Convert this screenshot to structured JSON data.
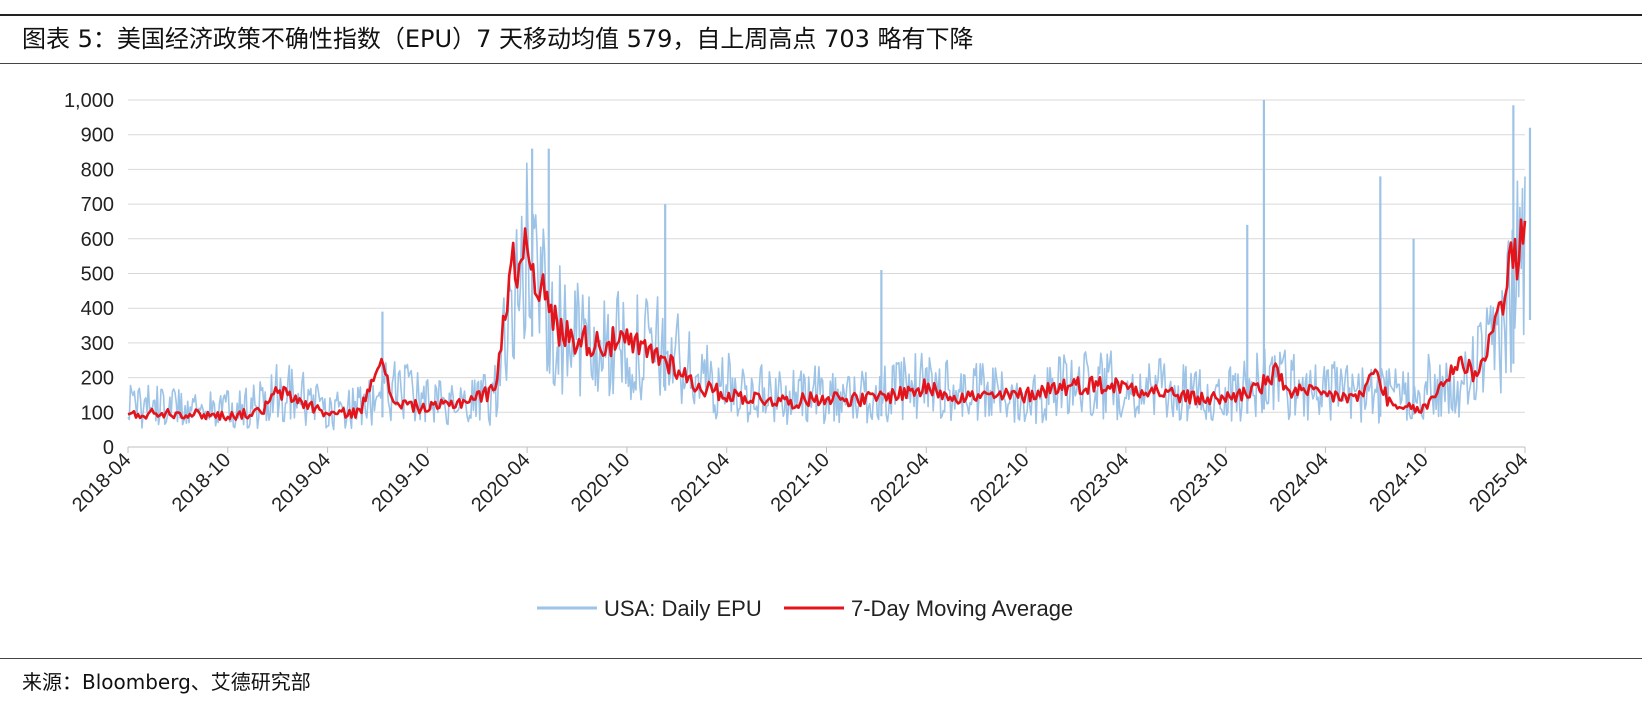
{
  "header": {
    "title": "图表 5：美国经济政策不确性指数（EPU）7 天移动均值 579，自上周高点 703 略有下降"
  },
  "footer": {
    "source": "来源：Bloomberg、艾德研究部"
  },
  "chart_data": {
    "type": "line",
    "title": "",
    "xlabel": "",
    "ylabel": "",
    "x_start": "2018-04",
    "x_end": "2025-04",
    "ylim": [
      0,
      1000
    ],
    "yticks": [
      "0",
      "100",
      "200",
      "300",
      "400",
      "500",
      "600",
      "700",
      "800",
      "900",
      "1,000"
    ],
    "xticks": [
      "2018-04",
      "2018-10",
      "2019-04",
      "2019-10",
      "2020-04",
      "2020-10",
      "2021-04",
      "2021-10",
      "2022-04",
      "2022-10",
      "2023-04",
      "2023-10",
      "2024-04",
      "2024-10",
      "2025-04"
    ],
    "grid": "horizontal",
    "legend_position": "bottom",
    "series": [
      {
        "name": "USA: Daily EPU",
        "color": "#9dc3e6",
        "style": "daily",
        "x": [
          "2018-04",
          "2018-06",
          "2018-08",
          "2018-10",
          "2018-12",
          "2019-01",
          "2019-02",
          "2019-04",
          "2019-06",
          "2019-08",
          "2019-10",
          "2019-12",
          "2020-02",
          "2020-03",
          "2020-04",
          "2020-05",
          "2020-06",
          "2020-08",
          "2020-10",
          "2020-12",
          "2021-01",
          "2021-02",
          "2021-04",
          "2021-06",
          "2021-08",
          "2021-10",
          "2021-12",
          "2022-02",
          "2022-04",
          "2022-06",
          "2022-08",
          "2022-10",
          "2022-12",
          "2023-02",
          "2023-04",
          "2023-06",
          "2023-08",
          "2023-10",
          "2023-12",
          "2024-01",
          "2024-02",
          "2024-04",
          "2024-06",
          "2024-08",
          "2024-10",
          "2024-12",
          "2025-01",
          "2025-02",
          "2025-03",
          "2025-04"
        ],
        "values": [
          120,
          115,
          110,
          105,
          120,
          170,
          150,
          100,
          115,
          170,
          125,
          110,
          140,
          380,
          530,
          460,
          330,
          280,
          280,
          270,
          250,
          200,
          170,
          150,
          140,
          150,
          140,
          155,
          180,
          150,
          150,
          140,
          170,
          180,
          170,
          160,
          145,
          140,
          180,
          200,
          170,
          160,
          150,
          140,
          170,
          140,
          230,
          260,
          400,
          610
        ],
        "spikes": [
          {
            "x": "2019-07",
            "y": 390
          },
          {
            "x": "2020-04",
            "y": 860
          },
          {
            "x": "2020-05",
            "y": 860
          },
          {
            "x": "2020-12",
            "y": 700
          },
          {
            "x": "2022-01",
            "y": 510
          },
          {
            "x": "2023-11",
            "y": 640
          },
          {
            "x": "2023-12",
            "y": 1000
          },
          {
            "x": "2024-07",
            "y": 780
          },
          {
            "x": "2024-09",
            "y": 600
          },
          {
            "x": "2025-03",
            "y": 985
          },
          {
            "x": "2025-04",
            "y": 920
          }
        ]
      },
      {
        "name": "7-Day Moving Average",
        "color": "#e3141b",
        "style": "smooth",
        "x": [
          "2018-04",
          "2018-06",
          "2018-08",
          "2018-10",
          "2018-12",
          "2019-01",
          "2019-02",
          "2019-04",
          "2019-06",
          "2019-07",
          "2019-08",
          "2019-10",
          "2019-12",
          "2020-02",
          "2020-03",
          "2020-04",
          "2020-05",
          "2020-06",
          "2020-08",
          "2020-10",
          "2020-12",
          "2021-01",
          "2021-02",
          "2021-04",
          "2021-06",
          "2021-08",
          "2021-10",
          "2021-12",
          "2022-02",
          "2022-04",
          "2022-06",
          "2022-08",
          "2022-10",
          "2022-12",
          "2023-02",
          "2023-04",
          "2023-06",
          "2023-08",
          "2023-10",
          "2023-12",
          "2024-01",
          "2024-02",
          "2024-04",
          "2024-06",
          "2024-07",
          "2024-08",
          "2024-10",
          "2024-12",
          "2025-01",
          "2025-02",
          "2025-03",
          "2025-04"
        ],
        "values": [
          90,
          100,
          95,
          90,
          100,
          160,
          140,
          95,
          100,
          260,
          130,
          110,
          130,
          160,
          500,
          590,
          430,
          330,
          300,
          300,
          260,
          230,
          180,
          150,
          140,
          130,
          145,
          135,
          150,
          170,
          145,
          145,
          150,
          175,
          180,
          175,
          160,
          140,
          140,
          170,
          210,
          160,
          150,
          140,
          220,
          110,
          110,
          250,
          210,
          320,
          500,
          600
        ]
      }
    ]
  }
}
